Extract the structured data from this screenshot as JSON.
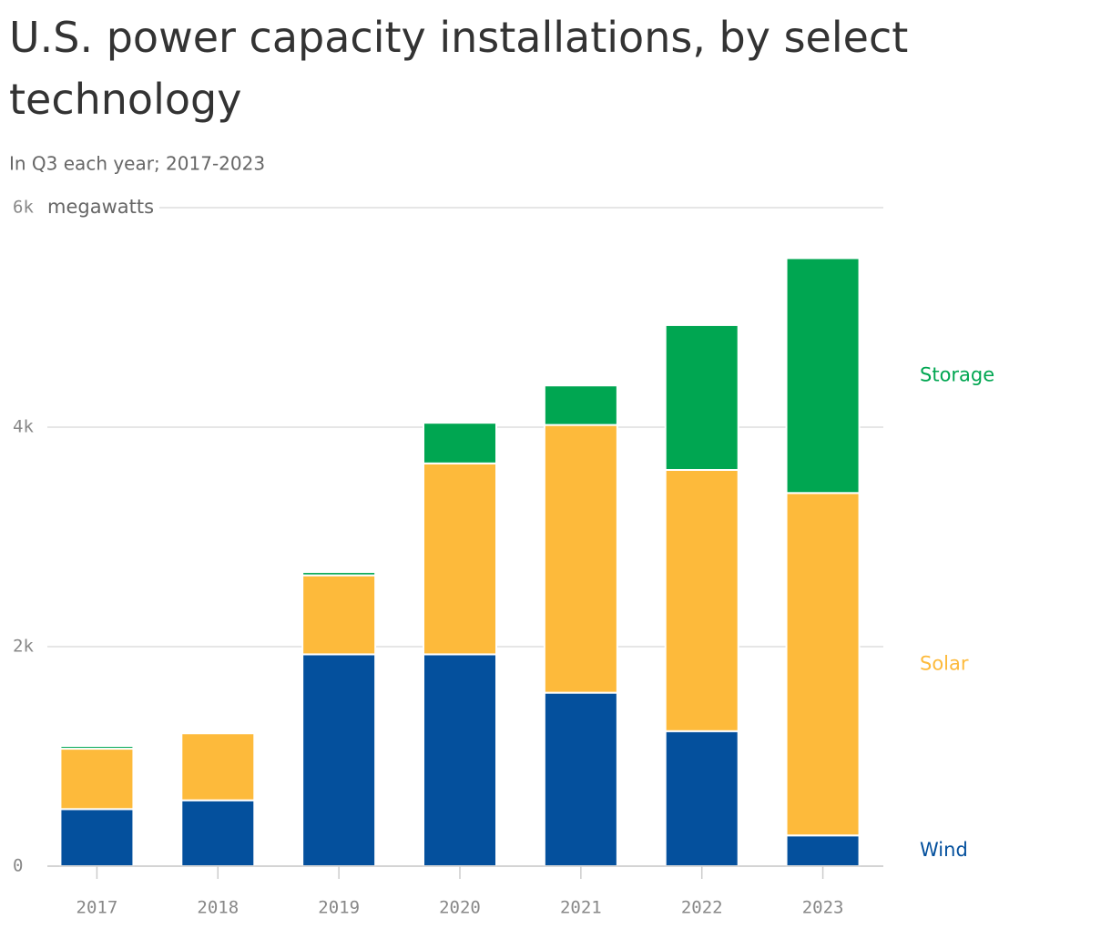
{
  "chart_data": {
    "type": "stacked_bar",
    "title": "U.S. power capacity installations, by select technology",
    "subtitle": "In Q3 each year; 2017-2023",
    "y_unit": "megawatts",
    "categories": [
      "2017",
      "2018",
      "2019",
      "2020",
      "2021",
      "2022",
      "2023"
    ],
    "series": [
      {
        "name": "Wind",
        "color": "#04509d",
        "values": [
          520,
          600,
          1930,
          1930,
          1580,
          1230,
          280
        ]
      },
      {
        "name": "Solar",
        "color": "#fdba3b",
        "values": [
          550,
          610,
          720,
          1740,
          2440,
          2380,
          3120
        ]
      },
      {
        "name": "Storage",
        "color": "#00a651",
        "values": [
          25,
          0,
          30,
          370,
          360,
          1320,
          2140
        ]
      }
    ],
    "ylim": [
      0,
      6000
    ],
    "yticks": [
      0,
      {
        "value": 2000,
        "label": "2k"
      },
      {
        "value": 4000,
        "label": "4k"
      },
      {
        "value": 6000,
        "label": "6k"
      }
    ],
    "grid": true,
    "legend": "right"
  }
}
